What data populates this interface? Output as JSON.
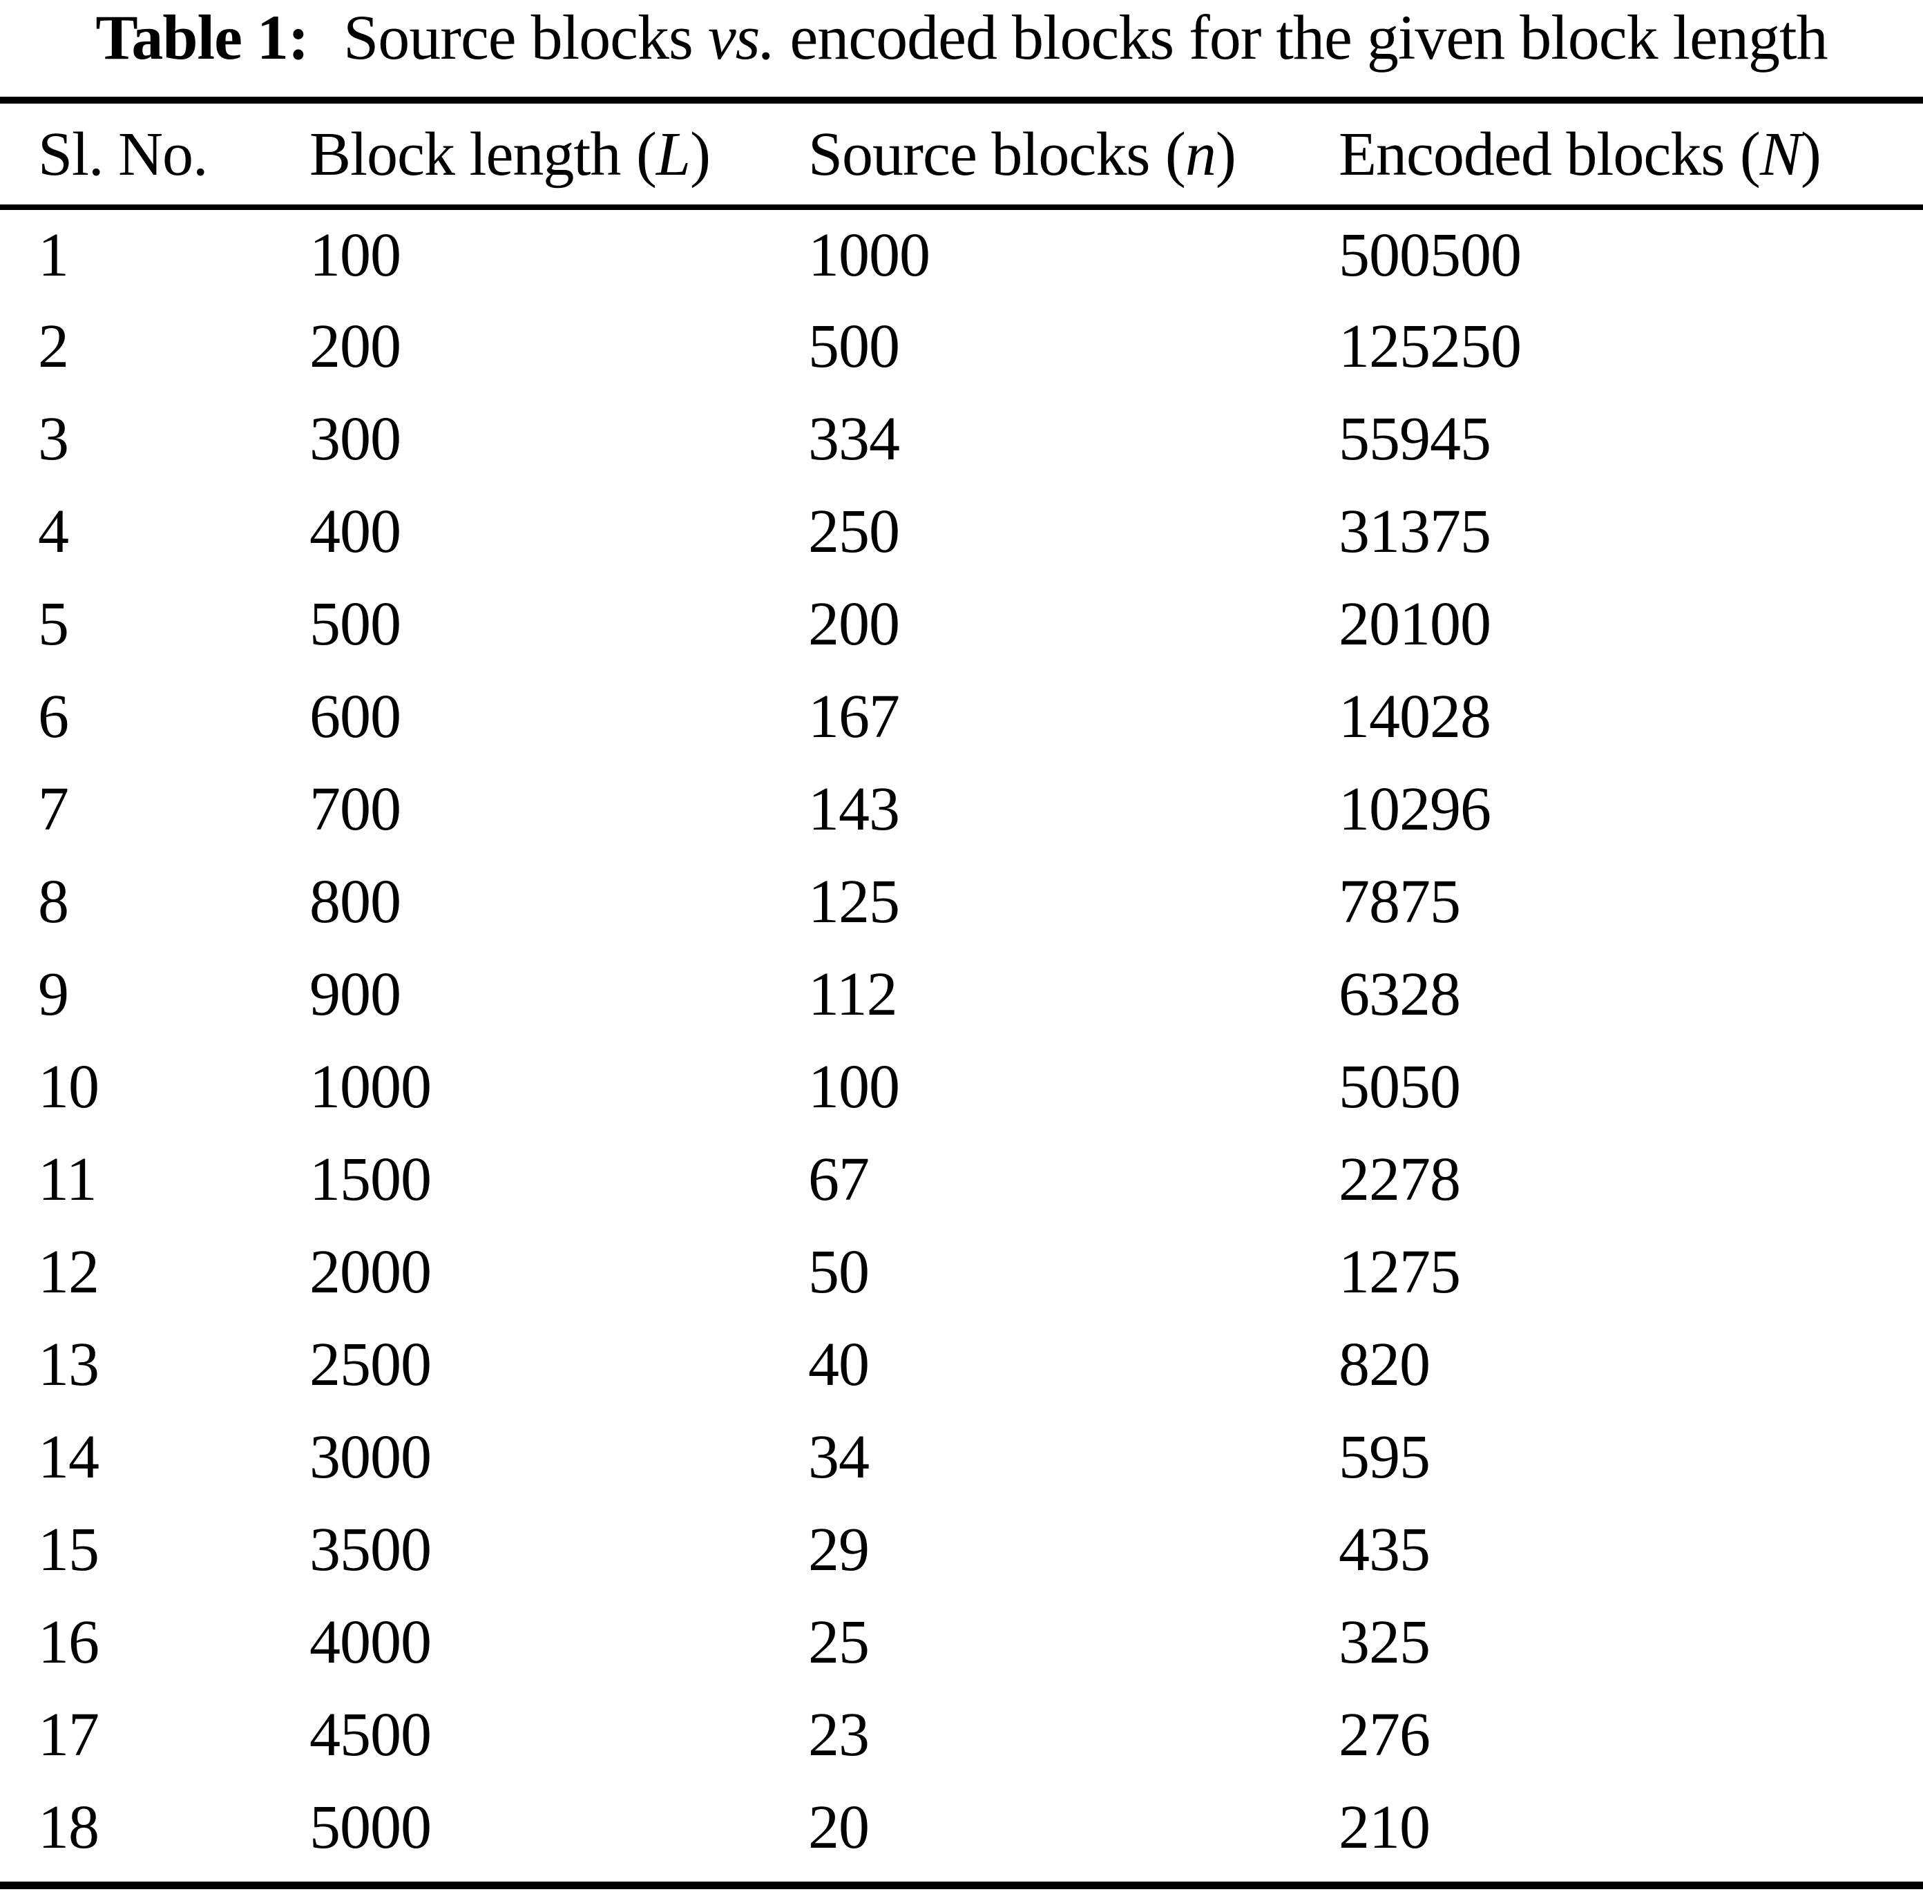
{
  "caption": {
    "label": "Table 1:",
    "pre": "Source blocks ",
    "vs": "vs.",
    "post": " encoded blocks for the given block length"
  },
  "table": {
    "columns": [
      {
        "name": "Sl. No.",
        "open": "",
        "var": "",
        "close": ""
      },
      {
        "name": "Block length",
        "open": "(",
        "var": "L",
        "close": ")"
      },
      {
        "name": "Source blocks",
        "open": "(",
        "var": "n",
        "close": ")"
      },
      {
        "name": "Encoded blocks",
        "open": "(",
        "var": "N",
        "close": ")"
      }
    ],
    "rows": [
      [
        1,
        100,
        1000,
        500500
      ],
      [
        2,
        200,
        500,
        125250
      ],
      [
        3,
        300,
        334,
        55945
      ],
      [
        4,
        400,
        250,
        31375
      ],
      [
        5,
        500,
        200,
        20100
      ],
      [
        6,
        600,
        167,
        14028
      ],
      [
        7,
        700,
        143,
        10296
      ],
      [
        8,
        800,
        125,
        7875
      ],
      [
        9,
        900,
        112,
        6328
      ],
      [
        10,
        1000,
        100,
        5050
      ],
      [
        11,
        1500,
        67,
        2278
      ],
      [
        12,
        2000,
        50,
        1275
      ],
      [
        13,
        2500,
        40,
        820
      ],
      [
        14,
        3000,
        34,
        595
      ],
      [
        15,
        3500,
        29,
        435
      ],
      [
        16,
        4000,
        25,
        325
      ],
      [
        17,
        4500,
        23,
        276
      ],
      [
        18,
        5000,
        20,
        210
      ]
    ]
  }
}
